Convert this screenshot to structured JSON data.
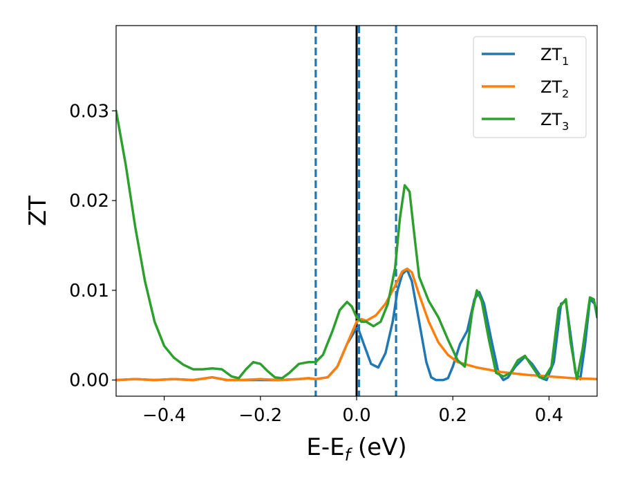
{
  "chart_data": {
    "type": "line",
    "title": "",
    "xlabel": "E-E",
    "xlabel_sub": "f",
    "xlabel_unit": " (eV)",
    "ylabel": "ZT",
    "xlim": [
      -0.5,
      0.5
    ],
    "ylim": [
      -0.0018,
      0.0395
    ],
    "xticks": [
      -0.4,
      -0.2,
      0.0,
      0.2,
      0.4
    ],
    "xtick_labels": [
      "−0.4",
      "−0.2",
      "0.0",
      "0.2",
      "0.4"
    ],
    "yticks": [
      0.0,
      0.01,
      0.02,
      0.03
    ],
    "ytick_labels": [
      "0.00",
      "0.01",
      "0.02",
      "0.03"
    ],
    "grid": false,
    "legend_position": "top-right",
    "vertical_lines": [
      {
        "x": 0.0,
        "style": "solid",
        "color": "#000000"
      },
      {
        "x": -0.085,
        "style": "dashed",
        "color": "#1f77b4"
      },
      {
        "x": 0.005,
        "style": "dashed",
        "color": "#1f77b4"
      },
      {
        "x": 0.082,
        "style": "dashed",
        "color": "#1f77b4"
      }
    ],
    "series": [
      {
        "name": "ZT",
        "name_sub": "1",
        "color": "#1f77b4",
        "points": [
          [
            -0.5,
            0.0
          ],
          [
            -0.46,
            0.0001
          ],
          [
            -0.42,
            0.0
          ],
          [
            -0.38,
            0.0001
          ],
          [
            -0.34,
            0.0
          ],
          [
            -0.3,
            0.0003
          ],
          [
            -0.27,
            0.0
          ],
          [
            -0.24,
            0.0
          ],
          [
            -0.2,
            0.0
          ],
          [
            -0.16,
            0.0
          ],
          [
            -0.12,
            0.0001
          ],
          [
            -0.1,
            0.0002
          ],
          [
            -0.085,
            0.0001
          ],
          [
            -0.06,
            0.0003
          ],
          [
            -0.04,
            0.0015
          ],
          [
            -0.02,
            0.004
          ],
          [
            0.0,
            0.0058
          ],
          [
            0.005,
            0.0055
          ],
          [
            0.015,
            0.004
          ],
          [
            0.03,
            0.0018
          ],
          [
            0.045,
            0.0014
          ],
          [
            0.06,
            0.003
          ],
          [
            0.075,
            0.0065
          ],
          [
            0.085,
            0.01
          ],
          [
            0.095,
            0.0118
          ],
          [
            0.105,
            0.0123
          ],
          [
            0.115,
            0.011
          ],
          [
            0.13,
            0.0065
          ],
          [
            0.145,
            0.002
          ],
          [
            0.155,
            0.0003
          ],
          [
            0.165,
            0.0
          ],
          [
            0.18,
            0.0
          ],
          [
            0.19,
            0.0002
          ],
          [
            0.2,
            0.0015
          ],
          [
            0.215,
            0.004
          ],
          [
            0.23,
            0.0055
          ],
          [
            0.245,
            0.009
          ],
          [
            0.255,
            0.0098
          ],
          [
            0.265,
            0.0085
          ],
          [
            0.28,
            0.0045
          ],
          [
            0.295,
            0.0008
          ],
          [
            0.305,
            0.0
          ],
          [
            0.315,
            0.0003
          ],
          [
            0.33,
            0.0015
          ],
          [
            0.35,
            0.0026
          ],
          [
            0.365,
            0.0018
          ],
          [
            0.385,
            0.0002
          ],
          [
            0.395,
            0.0
          ],
          [
            0.41,
            0.002
          ],
          [
            0.425,
            0.0085
          ],
          [
            0.435,
            0.0088
          ],
          [
            0.445,
            0.005
          ],
          [
            0.455,
            0.0008
          ],
          [
            0.465,
            0.0001
          ],
          [
            0.475,
            0.004
          ],
          [
            0.485,
            0.009
          ],
          [
            0.495,
            0.0085
          ],
          [
            0.5,
            0.007
          ]
        ]
      },
      {
        "name": "ZT",
        "name_sub": "2",
        "color": "#ff7f0e",
        "points": [
          [
            -0.5,
            0.0
          ],
          [
            -0.46,
            0.0001
          ],
          [
            -0.42,
            0.0
          ],
          [
            -0.38,
            0.0001
          ],
          [
            -0.34,
            0.0
          ],
          [
            -0.3,
            0.0003
          ],
          [
            -0.27,
            0.0
          ],
          [
            -0.24,
            0.0
          ],
          [
            -0.2,
            0.0001
          ],
          [
            -0.16,
            0.0
          ],
          [
            -0.12,
            0.0001
          ],
          [
            -0.1,
            0.0002
          ],
          [
            -0.085,
            0.0001
          ],
          [
            -0.06,
            0.0003
          ],
          [
            -0.04,
            0.0015
          ],
          [
            -0.02,
            0.004
          ],
          [
            0.0,
            0.0065
          ],
          [
            0.01,
            0.0068
          ],
          [
            0.02,
            0.0066
          ],
          [
            0.04,
            0.0072
          ],
          [
            0.06,
            0.0085
          ],
          [
            0.08,
            0.0105
          ],
          [
            0.095,
            0.0121
          ],
          [
            0.105,
            0.0124
          ],
          [
            0.115,
            0.012
          ],
          [
            0.13,
            0.0095
          ],
          [
            0.15,
            0.0065
          ],
          [
            0.17,
            0.0042
          ],
          [
            0.19,
            0.0028
          ],
          [
            0.21,
            0.002
          ],
          [
            0.25,
            0.0014
          ],
          [
            0.3,
            0.0009
          ],
          [
            0.35,
            0.0006
          ],
          [
            0.4,
            0.0004
          ],
          [
            0.45,
            0.0002
          ],
          [
            0.5,
            0.0001
          ]
        ]
      },
      {
        "name": "ZT",
        "name_sub": "3",
        "color": "#2ca02c",
        "points": [
          [
            -0.5,
            0.03
          ],
          [
            -0.48,
            0.024
          ],
          [
            -0.46,
            0.017
          ],
          [
            -0.44,
            0.011
          ],
          [
            -0.42,
            0.0065
          ],
          [
            -0.4,
            0.0038
          ],
          [
            -0.38,
            0.0025
          ],
          [
            -0.36,
            0.0017
          ],
          [
            -0.34,
            0.0012
          ],
          [
            -0.32,
            0.0012
          ],
          [
            -0.3,
            0.0013
          ],
          [
            -0.28,
            0.0012
          ],
          [
            -0.26,
            0.0004
          ],
          [
            -0.245,
            0.0002
          ],
          [
            -0.23,
            0.0012
          ],
          [
            -0.215,
            0.002
          ],
          [
            -0.2,
            0.0018
          ],
          [
            -0.185,
            0.001
          ],
          [
            -0.17,
            0.0003
          ],
          [
            -0.155,
            0.0002
          ],
          [
            -0.14,
            0.0008
          ],
          [
            -0.12,
            0.0018
          ],
          [
            -0.1,
            0.002
          ],
          [
            -0.085,
            0.002
          ],
          [
            -0.07,
            0.0028
          ],
          [
            -0.05,
            0.0055
          ],
          [
            -0.035,
            0.0078
          ],
          [
            -0.02,
            0.0087
          ],
          [
            -0.01,
            0.0082
          ],
          [
            0.0,
            0.007
          ],
          [
            0.01,
            0.0065
          ],
          [
            0.02,
            0.0065
          ],
          [
            0.035,
            0.006
          ],
          [
            0.05,
            0.0065
          ],
          [
            0.065,
            0.0085
          ],
          [
            0.08,
            0.0125
          ],
          [
            0.09,
            0.018
          ],
          [
            0.1,
            0.0217
          ],
          [
            0.11,
            0.021
          ],
          [
            0.12,
            0.0162
          ],
          [
            0.13,
            0.0115
          ],
          [
            0.15,
            0.0088
          ],
          [
            0.17,
            0.007
          ],
          [
            0.19,
            0.0045
          ],
          [
            0.21,
            0.0022
          ],
          [
            0.225,
            0.0015
          ],
          [
            0.24,
            0.0075
          ],
          [
            0.25,
            0.01
          ],
          [
            0.26,
            0.0088
          ],
          [
            0.275,
            0.0045
          ],
          [
            0.29,
            0.0008
          ],
          [
            0.305,
            0.0004
          ],
          [
            0.32,
            0.0008
          ],
          [
            0.335,
            0.0022
          ],
          [
            0.35,
            0.0027
          ],
          [
            0.365,
            0.0015
          ],
          [
            0.38,
            0.0003
          ],
          [
            0.39,
            0.0002
          ],
          [
            0.405,
            0.0015
          ],
          [
            0.42,
            0.008
          ],
          [
            0.435,
            0.009
          ],
          [
            0.445,
            0.0042
          ],
          [
            0.458,
            0.0001
          ],
          [
            0.47,
            0.0035
          ],
          [
            0.485,
            0.0092
          ],
          [
            0.493,
            0.009
          ],
          [
            0.5,
            0.0072
          ]
        ]
      }
    ]
  }
}
